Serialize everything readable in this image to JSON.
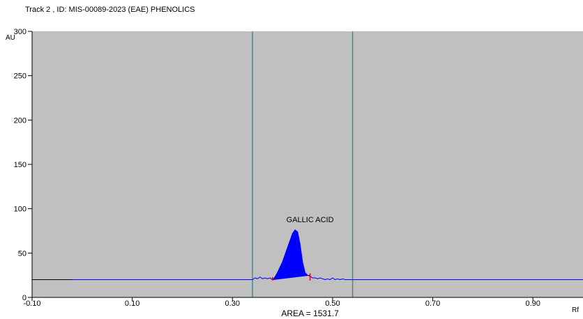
{
  "header": {
    "title": "Track  2 , ID: MIS-00089-2023 (EAE) PHENOLICS"
  },
  "chart_data": {
    "type": "line",
    "title": "Track  2 , ID: MIS-00089-2023 (EAE) PHENOLICS",
    "xlabel": "Rf",
    "ylabel": "AU",
    "xlim": [
      -0.1,
      1.0
    ],
    "ylim": [
      0,
      300
    ],
    "x_ticks": [
      -0.1,
      0.1,
      0.3,
      0.5,
      0.7,
      0.9
    ],
    "x_tick_labels": [
      "-0.10",
      "0.10",
      "0.30",
      "0.50",
      "0.70",
      "0.90"
    ],
    "y_ticks": [
      0,
      50,
      100,
      150,
      200,
      250,
      300
    ],
    "y_tick_labels": [
      "0",
      "50",
      "100",
      "150",
      "200",
      "250",
      "300"
    ],
    "baseline": 20,
    "grid": false,
    "colors": {
      "plot_background": "#c0c0c0",
      "trace": "#0000ff",
      "marker_lines": "#4a8a8a",
      "baseline_line": "#000000",
      "peak_bounds": "#ff0000"
    },
    "marker_lines_x": [
      0.34,
      0.54
    ],
    "series": [
      {
        "x": [
          -0.02,
          0.34,
          0.345,
          0.35,
          0.355,
          0.36,
          0.365,
          0.37,
          0.375,
          0.38,
          0.385,
          0.39,
          0.395,
          0.4,
          0.405,
          0.41,
          0.415,
          0.42,
          0.425,
          0.43,
          0.435,
          0.44,
          0.445,
          0.45,
          0.455,
          0.46,
          0.465,
          0.47,
          0.475,
          0.48,
          0.485,
          0.49,
          0.495,
          0.5,
          0.505,
          0.51,
          0.515,
          0.52,
          0.525,
          0.53,
          0.535,
          0.54,
          1.0
        ],
        "y": [
          20,
          20,
          22,
          21,
          23,
          21,
          22,
          21,
          22,
          20,
          23,
          28,
          34,
          40,
          48,
          56,
          64,
          72,
          76,
          74,
          60,
          40,
          28,
          25,
          24,
          22,
          22,
          21,
          22,
          21,
          20,
          21,
          20,
          22,
          20,
          21,
          20,
          21,
          20,
          20,
          20,
          20,
          20
        ]
      }
    ],
    "peaks": [
      {
        "label": "GALLIC ACID",
        "start": 0.38,
        "apex": 0.425,
        "end": 0.455,
        "height": 76,
        "area": 1531.7
      }
    ],
    "annotations": {
      "peak_label": "GALLIC ACID",
      "area_text": "AREA = 1531.7"
    }
  }
}
